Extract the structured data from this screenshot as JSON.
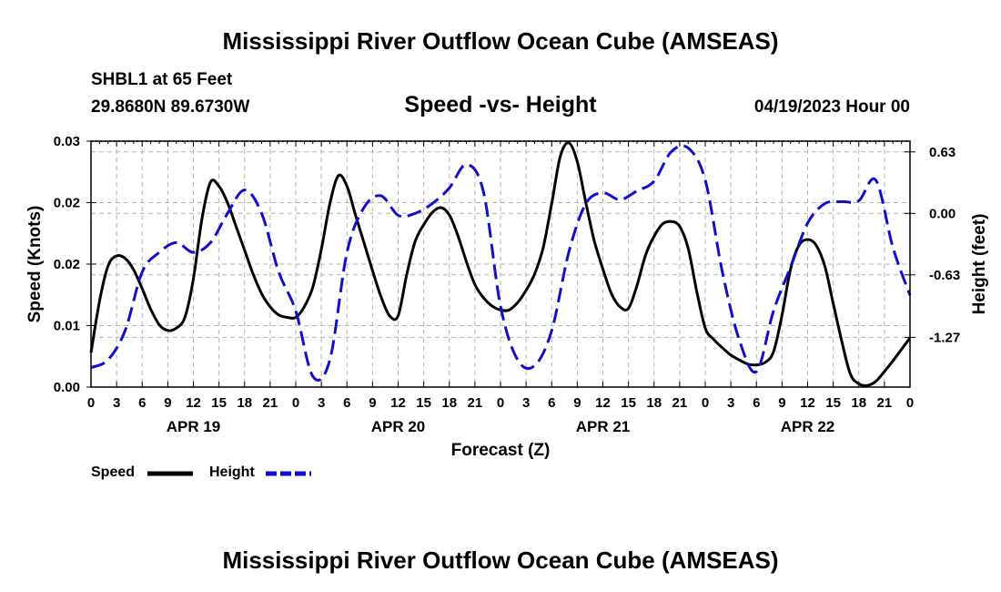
{
  "header": {
    "title": "Mississippi River Outflow Ocean Cube (AMSEAS)",
    "station": "SHBL1 at 65 Feet",
    "coords": "29.8680N  89.6730W",
    "chart_title": "Speed -vs- Height",
    "datetime": "04/19/2023 Hour 00"
  },
  "footer": {
    "title": "Mississippi River Outflow Ocean Cube (AMSEAS)"
  },
  "legend": {
    "speed_label": "Speed",
    "height_label": "Height"
  },
  "colors": {
    "speed": "#000000",
    "height": "#1010cc",
    "grid": "#b4b4b4"
  },
  "chart_data": {
    "type": "line",
    "title": "Speed -vs- Height",
    "xlabel": "Forecast (Z)",
    "ylabel": "Speed (Knots)",
    "y2label": "Height (feet)",
    "xlim": [
      0,
      96
    ],
    "ylim": [
      0,
      0.03
    ],
    "y2lim": [
      -1.78,
      0.74
    ],
    "x_tick_labels": [
      "0",
      "3",
      "6",
      "9",
      "12",
      "15",
      "18",
      "21",
      "0",
      "3",
      "6",
      "9",
      "12",
      "15",
      "18",
      "21",
      "0",
      "3",
      "6",
      "9",
      "12",
      "15",
      "18",
      "21",
      "0",
      "3",
      "6",
      "9",
      "12",
      "15",
      "18",
      "21",
      "0"
    ],
    "day_labels": [
      {
        "label": "APR 19",
        "x": 12
      },
      {
        "label": "APR 20",
        "x": 36
      },
      {
        "label": "APR 21",
        "x": 60
      },
      {
        "label": "APR 22",
        "x": 84
      }
    ],
    "y_ticks": [
      0,
      0.0075,
      0.015,
      0.0225,
      0.03
    ],
    "y_tick_labels": [
      "0.00",
      "0.01",
      "0.02",
      "0.02",
      "0.03"
    ],
    "y2_ticks": [
      0.63,
      0.0,
      -0.63,
      -1.27
    ],
    "y2_tick_labels": [
      "0.63",
      "0.00",
      "-0.63",
      "-1.27"
    ],
    "series": [
      {
        "name": "Speed",
        "axis": "left",
        "style": "solid",
        "x": [
          0,
          1,
          2,
          3,
          4,
          5,
          6,
          7,
          8,
          9,
          10,
          11,
          12,
          13,
          14,
          15,
          16,
          17,
          18,
          19,
          20,
          21,
          22,
          23,
          24,
          25,
          26,
          27,
          28,
          29,
          30,
          31,
          32,
          33,
          34,
          35,
          36,
          37,
          38,
          39,
          40,
          41,
          42,
          43,
          44,
          45,
          46,
          47,
          48,
          49,
          50,
          51,
          52,
          53,
          54,
          55,
          56,
          57,
          58,
          59,
          60,
          61,
          62,
          63,
          64,
          65,
          66,
          67,
          68,
          69,
          70,
          71,
          72,
          73,
          74,
          75,
          76,
          77,
          78,
          79,
          80,
          81,
          82,
          83,
          84,
          85,
          86,
          87,
          88,
          89,
          90,
          91,
          92,
          93,
          94,
          95,
          96
        ],
        "values": [
          0.0042,
          0.0105,
          0.0148,
          0.016,
          0.0157,
          0.0143,
          0.012,
          0.0095,
          0.0076,
          0.0069,
          0.0072,
          0.0085,
          0.0132,
          0.0205,
          0.025,
          0.0245,
          0.0225,
          0.0196,
          0.0167,
          0.0138,
          0.0114,
          0.0098,
          0.0088,
          0.0085,
          0.0085,
          0.0098,
          0.0122,
          0.0168,
          0.0224,
          0.0258,
          0.0245,
          0.021,
          0.0176,
          0.0142,
          0.011,
          0.0087,
          0.0087,
          0.0137,
          0.0178,
          0.0198,
          0.0213,
          0.0219,
          0.021,
          0.0185,
          0.0153,
          0.0125,
          0.0109,
          0.0099,
          0.0094,
          0.0094,
          0.0103,
          0.0118,
          0.0138,
          0.017,
          0.0224,
          0.0281,
          0.0298,
          0.0275,
          0.0225,
          0.0178,
          0.0144,
          0.0114,
          0.0098,
          0.0096,
          0.0124,
          0.0161,
          0.0184,
          0.0199,
          0.0202,
          0.0196,
          0.0169,
          0.0117,
          0.0072,
          0.0058,
          0.0048,
          0.0039,
          0.0033,
          0.0028,
          0.0027,
          0.003,
          0.0043,
          0.0088,
          0.0144,
          0.0173,
          0.018,
          0.0173,
          0.0148,
          0.0102,
          0.0056,
          0.0016,
          0.0004,
          0.0002,
          0.0007,
          0.0019,
          0.0032,
          0.0046,
          0.006
        ]
      },
      {
        "name": "Height",
        "axis": "right",
        "style": "dashed",
        "x": [
          0,
          2,
          4,
          6,
          8,
          10,
          12,
          14,
          16,
          18,
          20,
          22,
          24,
          26,
          28,
          30,
          32,
          34,
          36,
          38,
          40,
          42,
          44,
          46,
          48,
          50,
          52,
          54,
          56,
          58,
          60,
          62,
          64,
          66,
          68,
          70,
          72,
          74,
          76,
          78,
          80,
          82,
          84,
          86,
          88,
          90,
          92,
          94,
          96
        ],
        "values": [
          -1.58,
          -1.5,
          -1.2,
          -0.6,
          -0.4,
          -0.3,
          -0.4,
          -0.3,
          0.0,
          0.24,
          0.0,
          -0.6,
          -1.0,
          -1.67,
          -1.5,
          -0.4,
          0.06,
          0.18,
          -0.02,
          0.0,
          0.1,
          0.26,
          0.5,
          0.22,
          -0.95,
          -1.5,
          -1.56,
          -1.2,
          -0.4,
          0.1,
          0.21,
          0.14,
          0.23,
          0.33,
          0.63,
          0.67,
          0.34,
          -0.6,
          -1.3,
          -1.62,
          -1.0,
          -0.55,
          -0.1,
          0.1,
          0.12,
          0.13,
          0.34,
          -0.35,
          -0.84
        ]
      }
    ]
  }
}
